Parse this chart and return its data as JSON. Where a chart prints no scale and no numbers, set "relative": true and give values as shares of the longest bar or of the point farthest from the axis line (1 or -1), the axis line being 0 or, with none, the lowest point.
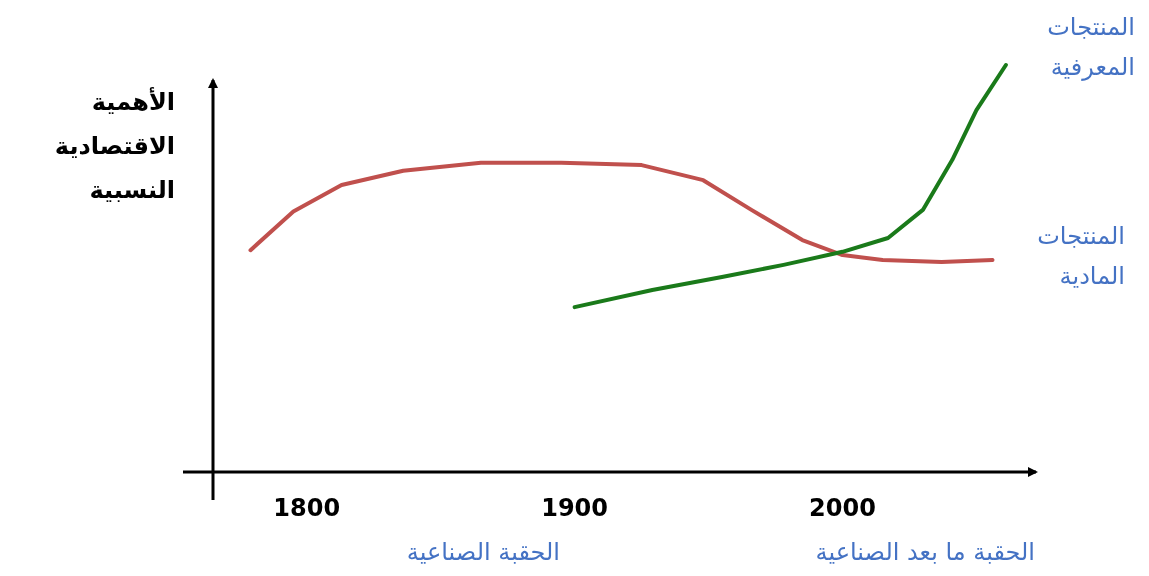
{
  "chart_data": {
    "type": "line",
    "relative": true,
    "ylabel": "الأهمية الاقتصادية النسبية",
    "xlim": [
      1765,
      2070
    ],
    "xticks": [
      1800,
      1900,
      2000
    ],
    "grid": false,
    "legend": false,
    "marker": "none",
    "line_style": "solid",
    "series": [
      {
        "name": "المنتجات المادية",
        "color": "#c0504d",
        "x": [
          1779,
          1795,
          1813,
          1836,
          1865,
          1895,
          1925,
          1948,
          1966,
          1985,
          2000,
          2015,
          2037,
          2056
        ],
        "values": [
          0.545,
          0.64,
          0.705,
          0.74,
          0.76,
          0.76,
          0.754,
          0.717,
          0.644,
          0.57,
          0.533,
          0.521,
          0.516,
          0.521
        ]
      },
      {
        "name": "المنتجات المعرفية",
        "color": "#1a7a1a",
        "x": [
          1900,
          1929,
          1955,
          1978,
          2000,
          2017,
          2030,
          2041,
          2050,
          2061
        ],
        "values": [
          0.405,
          0.447,
          0.479,
          0.509,
          0.541,
          0.575,
          0.644,
          0.767,
          0.889,
          1
        ]
      }
    ],
    "annotations": [
      "الحقبة الصناعية",
      "الحقبة ما بعد الصناعية"
    ]
  }
}
